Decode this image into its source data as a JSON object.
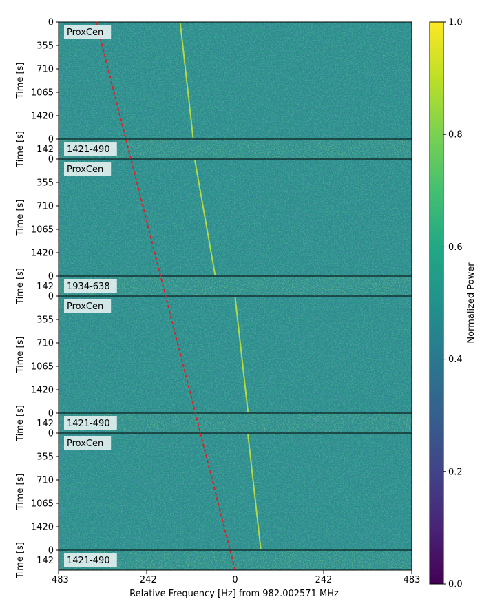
{
  "chart_data": {
    "type": "heatmap",
    "colormap": "viridis",
    "xlabel": "Relative Frequency [Hz] from 982.002571 MHz",
    "xlim": [
      -483,
      483
    ],
    "xticks": [
      -483,
      -242,
      0,
      242,
      483
    ],
    "colorbar": {
      "label": "Normalized Power",
      "range": [
        0.0,
        1.0
      ],
      "ticks": [
        "0.0",
        "0.2",
        "0.4",
        "0.6",
        "0.8",
        "1.0"
      ]
    },
    "drift_line": {
      "style": "dashed",
      "color": "#d62728",
      "start_freq_hz": -380,
      "end_freq_hz": 0
    },
    "signal_line": {
      "color": "#c8e63c",
      "segments": [
        {
          "panel": 0,
          "from_hz": -150,
          "to_hz": -115
        },
        {
          "panel": 2,
          "from_hz": -110,
          "to_hz": -55
        },
        {
          "panel": 4,
          "from_hz": 0,
          "to_hz": 35
        },
        {
          "panel": 6,
          "from_hz": 35,
          "to_hz": 70
        }
      ]
    },
    "panels": [
      {
        "label": "ProxCen",
        "ylabel": "Time [s]",
        "yticks": [
          "0",
          "355",
          "710",
          "1065",
          "1420"
        ],
        "ylim": [
          0,
          1775
        ],
        "kind": "on"
      },
      {
        "label": "1421-490",
        "ylabel": "Time [s]",
        "yticks": [
          "0",
          "142"
        ],
        "ylim": [
          0,
          284
        ],
        "kind": "off"
      },
      {
        "label": "ProxCen",
        "ylabel": "Time [s]",
        "yticks": [
          "0",
          "355",
          "710",
          "1065",
          "1420"
        ],
        "ylim": [
          0,
          1775
        ],
        "kind": "on"
      },
      {
        "label": "1934-638",
        "ylabel": "Time [s]",
        "yticks": [
          "0",
          "142"
        ],
        "ylim": [
          0,
          284
        ],
        "kind": "off"
      },
      {
        "label": "ProxCen",
        "ylabel": "Time [s]",
        "yticks": [
          "0",
          "355",
          "710",
          "1065",
          "1420"
        ],
        "ylim": [
          0,
          1775
        ],
        "kind": "on"
      },
      {
        "label": "1421-490",
        "ylabel": "Time [s]",
        "yticks": [
          "0",
          "142"
        ],
        "ylim": [
          0,
          284
        ],
        "kind": "off"
      },
      {
        "label": "ProxCen",
        "ylabel": "Time [s]",
        "yticks": [
          "0",
          "355",
          "710",
          "1065",
          "1420"
        ],
        "ylim": [
          0,
          1775
        ],
        "kind": "on"
      },
      {
        "label": "1421-490",
        "ylabel": "Time [s]",
        "yticks": [
          "0",
          "142"
        ],
        "ylim": [
          0,
          284
        ],
        "kind": "off"
      }
    ]
  }
}
